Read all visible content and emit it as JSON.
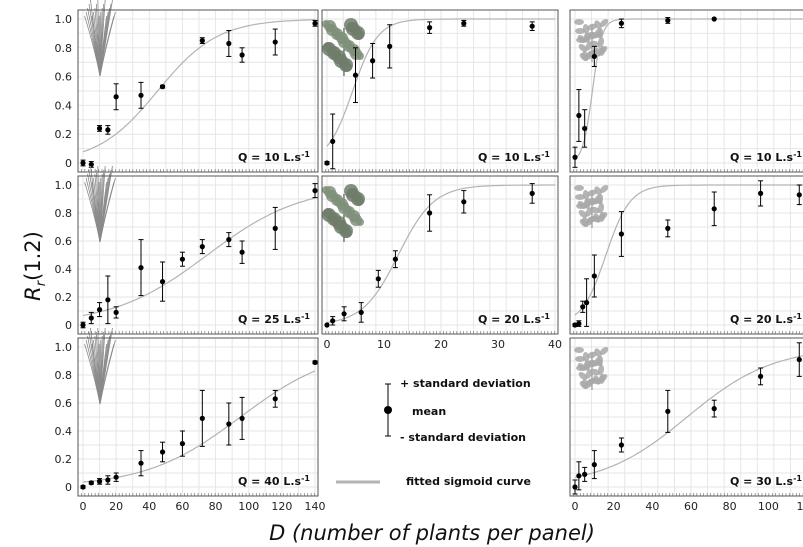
{
  "figure": {
    "xlabel": "D (number of plants per panel)",
    "ylabel": "R",
    "ylabel_subscript": "r",
    "ylabel_suffix": "(1.2)",
    "legend": {
      "plus_sd": "+ standard deviation",
      "mean": "mean",
      "minus_sd": "- standard deviation",
      "fit": "fitted sigmoid curve"
    },
    "colors": {
      "points": "#000000",
      "fit": "#b3b3b3",
      "grid": "#e6e6e6",
      "frame": "#555555",
      "plant1": "#8a8a8a",
      "plant2": "#6e7d6a",
      "plant3": "#a8a8a8"
    }
  },
  "chart_data": [
    {
      "type": "scatter",
      "row": 1,
      "col": 1,
      "q_label": "Q = 10 L.s",
      "q_sup": "-1",
      "plant_icon": "reed-plant-icon",
      "xlim": [
        0,
        140
      ],
      "ylim": [
        0,
        1
      ],
      "xticks": [],
      "yticks": [
        0,
        0.2,
        0.4,
        0.6,
        0.8,
        1.0
      ],
      "grid": true,
      "points": [
        [
          0,
          0.0,
          0.02
        ],
        [
          5,
          -0.01,
          0.02
        ],
        [
          10,
          0.24,
          0.02
        ],
        [
          15,
          0.23,
          0.03
        ],
        [
          20,
          0.46,
          0.09
        ],
        [
          35,
          0.47,
          0.09
        ],
        [
          48,
          0.53,
          0.01
        ],
        [
          72,
          0.85,
          0.02
        ],
        [
          88,
          0.83,
          0.09
        ],
        [
          96,
          0.75,
          0.05
        ],
        [
          116,
          0.84,
          0.09
        ],
        [
          140,
          0.97,
          0.02
        ]
      ],
      "fit": {
        "x0": 45,
        "k": 0.055
      }
    },
    {
      "type": "scatter",
      "row": 1,
      "col": 2,
      "q_label": "Q = 10 L.s",
      "q_sup": "-1",
      "plant_icon": "bushy-plant-icon",
      "xlim": [
        0,
        40
      ],
      "ylim": [
        0,
        1
      ],
      "xticks": [],
      "yticks": [],
      "grid": true,
      "points": [
        [
          0,
          0.0,
          0.01
        ],
        [
          1,
          0.15,
          0.19
        ],
        [
          5,
          0.61,
          0.19
        ],
        [
          8,
          0.71,
          0.12
        ],
        [
          11,
          0.81,
          0.15
        ],
        [
          18,
          0.94,
          0.04
        ],
        [
          24,
          0.97,
          0.02
        ],
        [
          36,
          0.95,
          0.03
        ]
      ],
      "fit": {
        "x0": 4.5,
        "k": 0.45
      }
    },
    {
      "type": "scatter",
      "row": 1,
      "col": 3,
      "q_label": "Q = 10 L.s",
      "q_sup": "-1",
      "plant_icon": "leafy-plant-icon",
      "xlim": [
        0,
        120
      ],
      "ylim": [
        0,
        1
      ],
      "xticks": [],
      "yticks": [],
      "grid": true,
      "points": [
        [
          0,
          0.04,
          0.07
        ],
        [
          2,
          0.33,
          0.18
        ],
        [
          5,
          0.24,
          0.13
        ],
        [
          10,
          0.74,
          0.07
        ],
        [
          24,
          0.97,
          0.03
        ],
        [
          48,
          0.99,
          0.02
        ],
        [
          72,
          1.0,
          0.0
        ]
      ],
      "fit": {
        "x0": 9,
        "k": 0.4
      }
    },
    {
      "type": "scatter",
      "row": 2,
      "col": 1,
      "q_label": "Q = 25 L.s",
      "q_sup": "-1",
      "plant_icon": "reed-plant-icon",
      "xlim": [
        0,
        140
      ],
      "ylim": [
        0,
        1
      ],
      "xticks": [],
      "yticks": [
        0,
        0.2,
        0.4,
        0.6,
        0.8,
        1.0
      ],
      "grid": true,
      "points": [
        [
          0,
          0.0,
          0.02
        ],
        [
          5,
          0.05,
          0.04
        ],
        [
          10,
          0.11,
          0.05
        ],
        [
          15,
          0.18,
          0.17
        ],
        [
          20,
          0.09,
          0.04
        ],
        [
          35,
          0.41,
          0.2
        ],
        [
          48,
          0.31,
          0.14
        ],
        [
          60,
          0.47,
          0.05
        ],
        [
          72,
          0.56,
          0.05
        ],
        [
          88,
          0.61,
          0.05
        ],
        [
          96,
          0.52,
          0.08
        ],
        [
          116,
          0.69,
          0.15
        ],
        [
          140,
          0.96,
          0.05
        ]
      ],
      "fit": {
        "x0": 75,
        "k": 0.035
      }
    },
    {
      "type": "scatter",
      "row": 2,
      "col": 2,
      "q_label": "Q = 20 L.s",
      "q_sup": "-1",
      "plant_icon": "bushy-plant-icon",
      "xlim": [
        0,
        40
      ],
      "ylim": [
        0,
        1
      ],
      "xticks": [
        0,
        10,
        20,
        30,
        40
      ],
      "yticks": [],
      "grid": true,
      "points": [
        [
          0,
          0.0,
          0.0
        ],
        [
          1,
          0.03,
          0.03
        ],
        [
          3,
          0.08,
          0.05
        ],
        [
          6,
          0.09,
          0.07
        ],
        [
          9,
          0.33,
          0.06
        ],
        [
          12,
          0.47,
          0.06
        ],
        [
          18,
          0.8,
          0.13
        ],
        [
          24,
          0.88,
          0.08
        ],
        [
          36,
          0.94,
          0.07
        ]
      ],
      "fit": {
        "x0": 12.5,
        "k": 0.32
      }
    },
    {
      "type": "scatter",
      "row": 2,
      "col": 3,
      "q_label": "Q = 20 L.s",
      "q_sup": "-1",
      "plant_icon": "leafy-plant-icon",
      "xlim": [
        0,
        120
      ],
      "ylim": [
        0,
        1
      ],
      "xticks": [],
      "yticks": [],
      "grid": true,
      "points": [
        [
          0,
          0.0,
          0.01
        ],
        [
          2,
          0.01,
          0.02
        ],
        [
          4,
          0.13,
          0.04
        ],
        [
          6,
          0.16,
          0.17
        ],
        [
          10,
          0.35,
          0.15
        ],
        [
          24,
          0.65,
          0.16
        ],
        [
          48,
          0.69,
          0.06
        ],
        [
          72,
          0.83,
          0.12
        ],
        [
          96,
          0.94,
          0.09
        ],
        [
          116,
          0.93,
          0.07
        ]
      ],
      "fit": {
        "x0": 16,
        "k": 0.16
      }
    },
    {
      "type": "scatter",
      "row": 3,
      "col": 1,
      "q_label": "Q = 40 L.s",
      "q_sup": "-1",
      "plant_icon": "reed-plant-icon",
      "xlim": [
        0,
        140
      ],
      "ylim": [
        0,
        1
      ],
      "xticks": [
        0,
        20,
        40,
        60,
        80,
        100,
        120,
        140
      ],
      "yticks": [
        0,
        0.2,
        0.4,
        0.6,
        0.8,
        1.0
      ],
      "grid": true,
      "points": [
        [
          0,
          0.0,
          0.01
        ],
        [
          5,
          0.03,
          0.01
        ],
        [
          10,
          0.04,
          0.02
        ],
        [
          15,
          0.05,
          0.03
        ],
        [
          20,
          0.07,
          0.03
        ],
        [
          35,
          0.17,
          0.09
        ],
        [
          48,
          0.25,
          0.07
        ],
        [
          60,
          0.31,
          0.09
        ],
        [
          72,
          0.49,
          0.2
        ],
        [
          88,
          0.45,
          0.15
        ],
        [
          96,
          0.49,
          0.15
        ],
        [
          116,
          0.63,
          0.06
        ],
        [
          140,
          0.89,
          0.01
        ]
      ],
      "fit": {
        "x0": 95,
        "k": 0.035
      }
    },
    {
      "type": "scatter",
      "row": 3,
      "col": 3,
      "q_label": "Q = 30 L.s",
      "q_sup": "-1",
      "plant_icon": "leafy-plant-icon",
      "xlim": [
        0,
        120
      ],
      "ylim": [
        0,
        1
      ],
      "xticks": [
        0,
        20,
        40,
        60,
        80,
        100,
        120
      ],
      "yticks": [],
      "grid": true,
      "points": [
        [
          0,
          0.0,
          0.05
        ],
        [
          2,
          0.08,
          0.1
        ],
        [
          5,
          0.09,
          0.05
        ],
        [
          10,
          0.16,
          0.1
        ],
        [
          24,
          0.3,
          0.05
        ],
        [
          48,
          0.54,
          0.15
        ],
        [
          72,
          0.56,
          0.06
        ],
        [
          96,
          0.79,
          0.06
        ],
        [
          116,
          0.91,
          0.12
        ]
      ],
      "fit": {
        "x0": 58,
        "k": 0.045
      }
    }
  ]
}
